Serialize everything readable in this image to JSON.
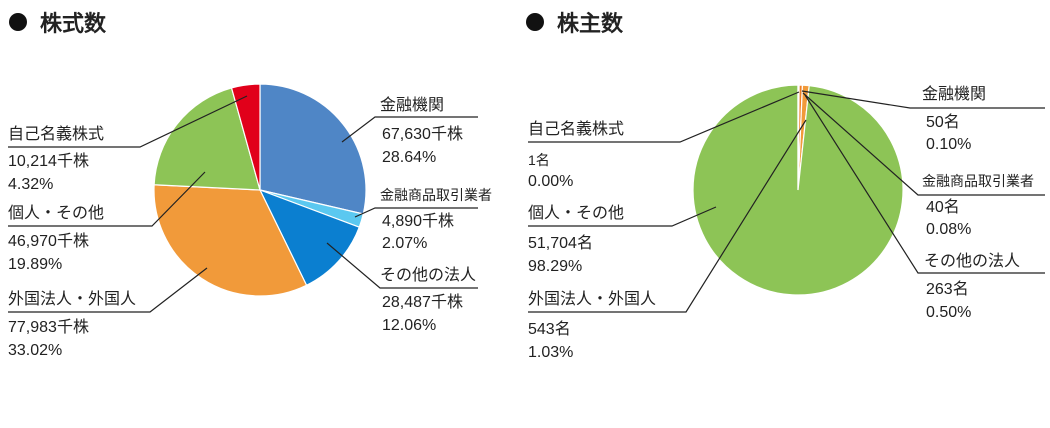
{
  "chart_data": [
    {
      "type": "pie",
      "title": "株式数",
      "unit": "千株",
      "colors": [
        "#4f86c6",
        "#5bc8f0",
        "#0b7fd0",
        "#f19a3a",
        "#8dc456",
        "#e1001a"
      ],
      "slices": [
        {
          "name": "金融機関",
          "value": 67630,
          "value_text": "67,630千株",
          "percent": 28.64,
          "percent_text": "28.64%"
        },
        {
          "name": "金融商品取引業者",
          "value": 4890,
          "value_text": "4,890千株",
          "percent": 2.07,
          "percent_text": "2.07%"
        },
        {
          "name": "その他の法人",
          "value": 28487,
          "value_text": "28,487千株",
          "percent": 12.06,
          "percent_text": "12.06%"
        },
        {
          "name": "外国法人・外国人",
          "value": 77983,
          "value_text": "77,983千株",
          "percent": 33.02,
          "percent_text": "33.02%"
        },
        {
          "name": "個人・その他",
          "value": 46970,
          "value_text": "46,970千株",
          "percent": 19.89,
          "percent_text": "19.89%"
        },
        {
          "name": "自己名義株式",
          "value": 10214,
          "value_text": "10,214千株",
          "percent": 4.32,
          "percent_text": "4.32%"
        }
      ]
    },
    {
      "type": "pie",
      "title": "株主数",
      "unit": "名",
      "colors": [
        "#4f86c6",
        "#5bc8f0",
        "#ef7d22",
        "#f19a3a",
        "#8dc456",
        "#e1001a"
      ],
      "slices": [
        {
          "name": "金融機関",
          "value": 50,
          "value_text": "50名",
          "percent": 0.1,
          "percent_text": "0.10%"
        },
        {
          "name": "金融商品取引業者",
          "value": 40,
          "value_text": "40名",
          "percent": 0.08,
          "percent_text": "0.08%"
        },
        {
          "name": "その他の法人",
          "value": 263,
          "value_text": "263名",
          "percent": 0.5,
          "percent_text": "0.50%"
        },
        {
          "name": "外国法人・外国人",
          "value": 543,
          "value_text": "543名",
          "percent": 1.03,
          "percent_text": "1.03%"
        },
        {
          "name": "個人・その他",
          "value": 51704,
          "value_text": "51,704名",
          "percent": 98.29,
          "percent_text": "98.29%"
        },
        {
          "name": "自己名義株式",
          "value": 1,
          "value_text": "1名",
          "percent": 0.0,
          "percent_text": "0.00%"
        }
      ]
    }
  ]
}
